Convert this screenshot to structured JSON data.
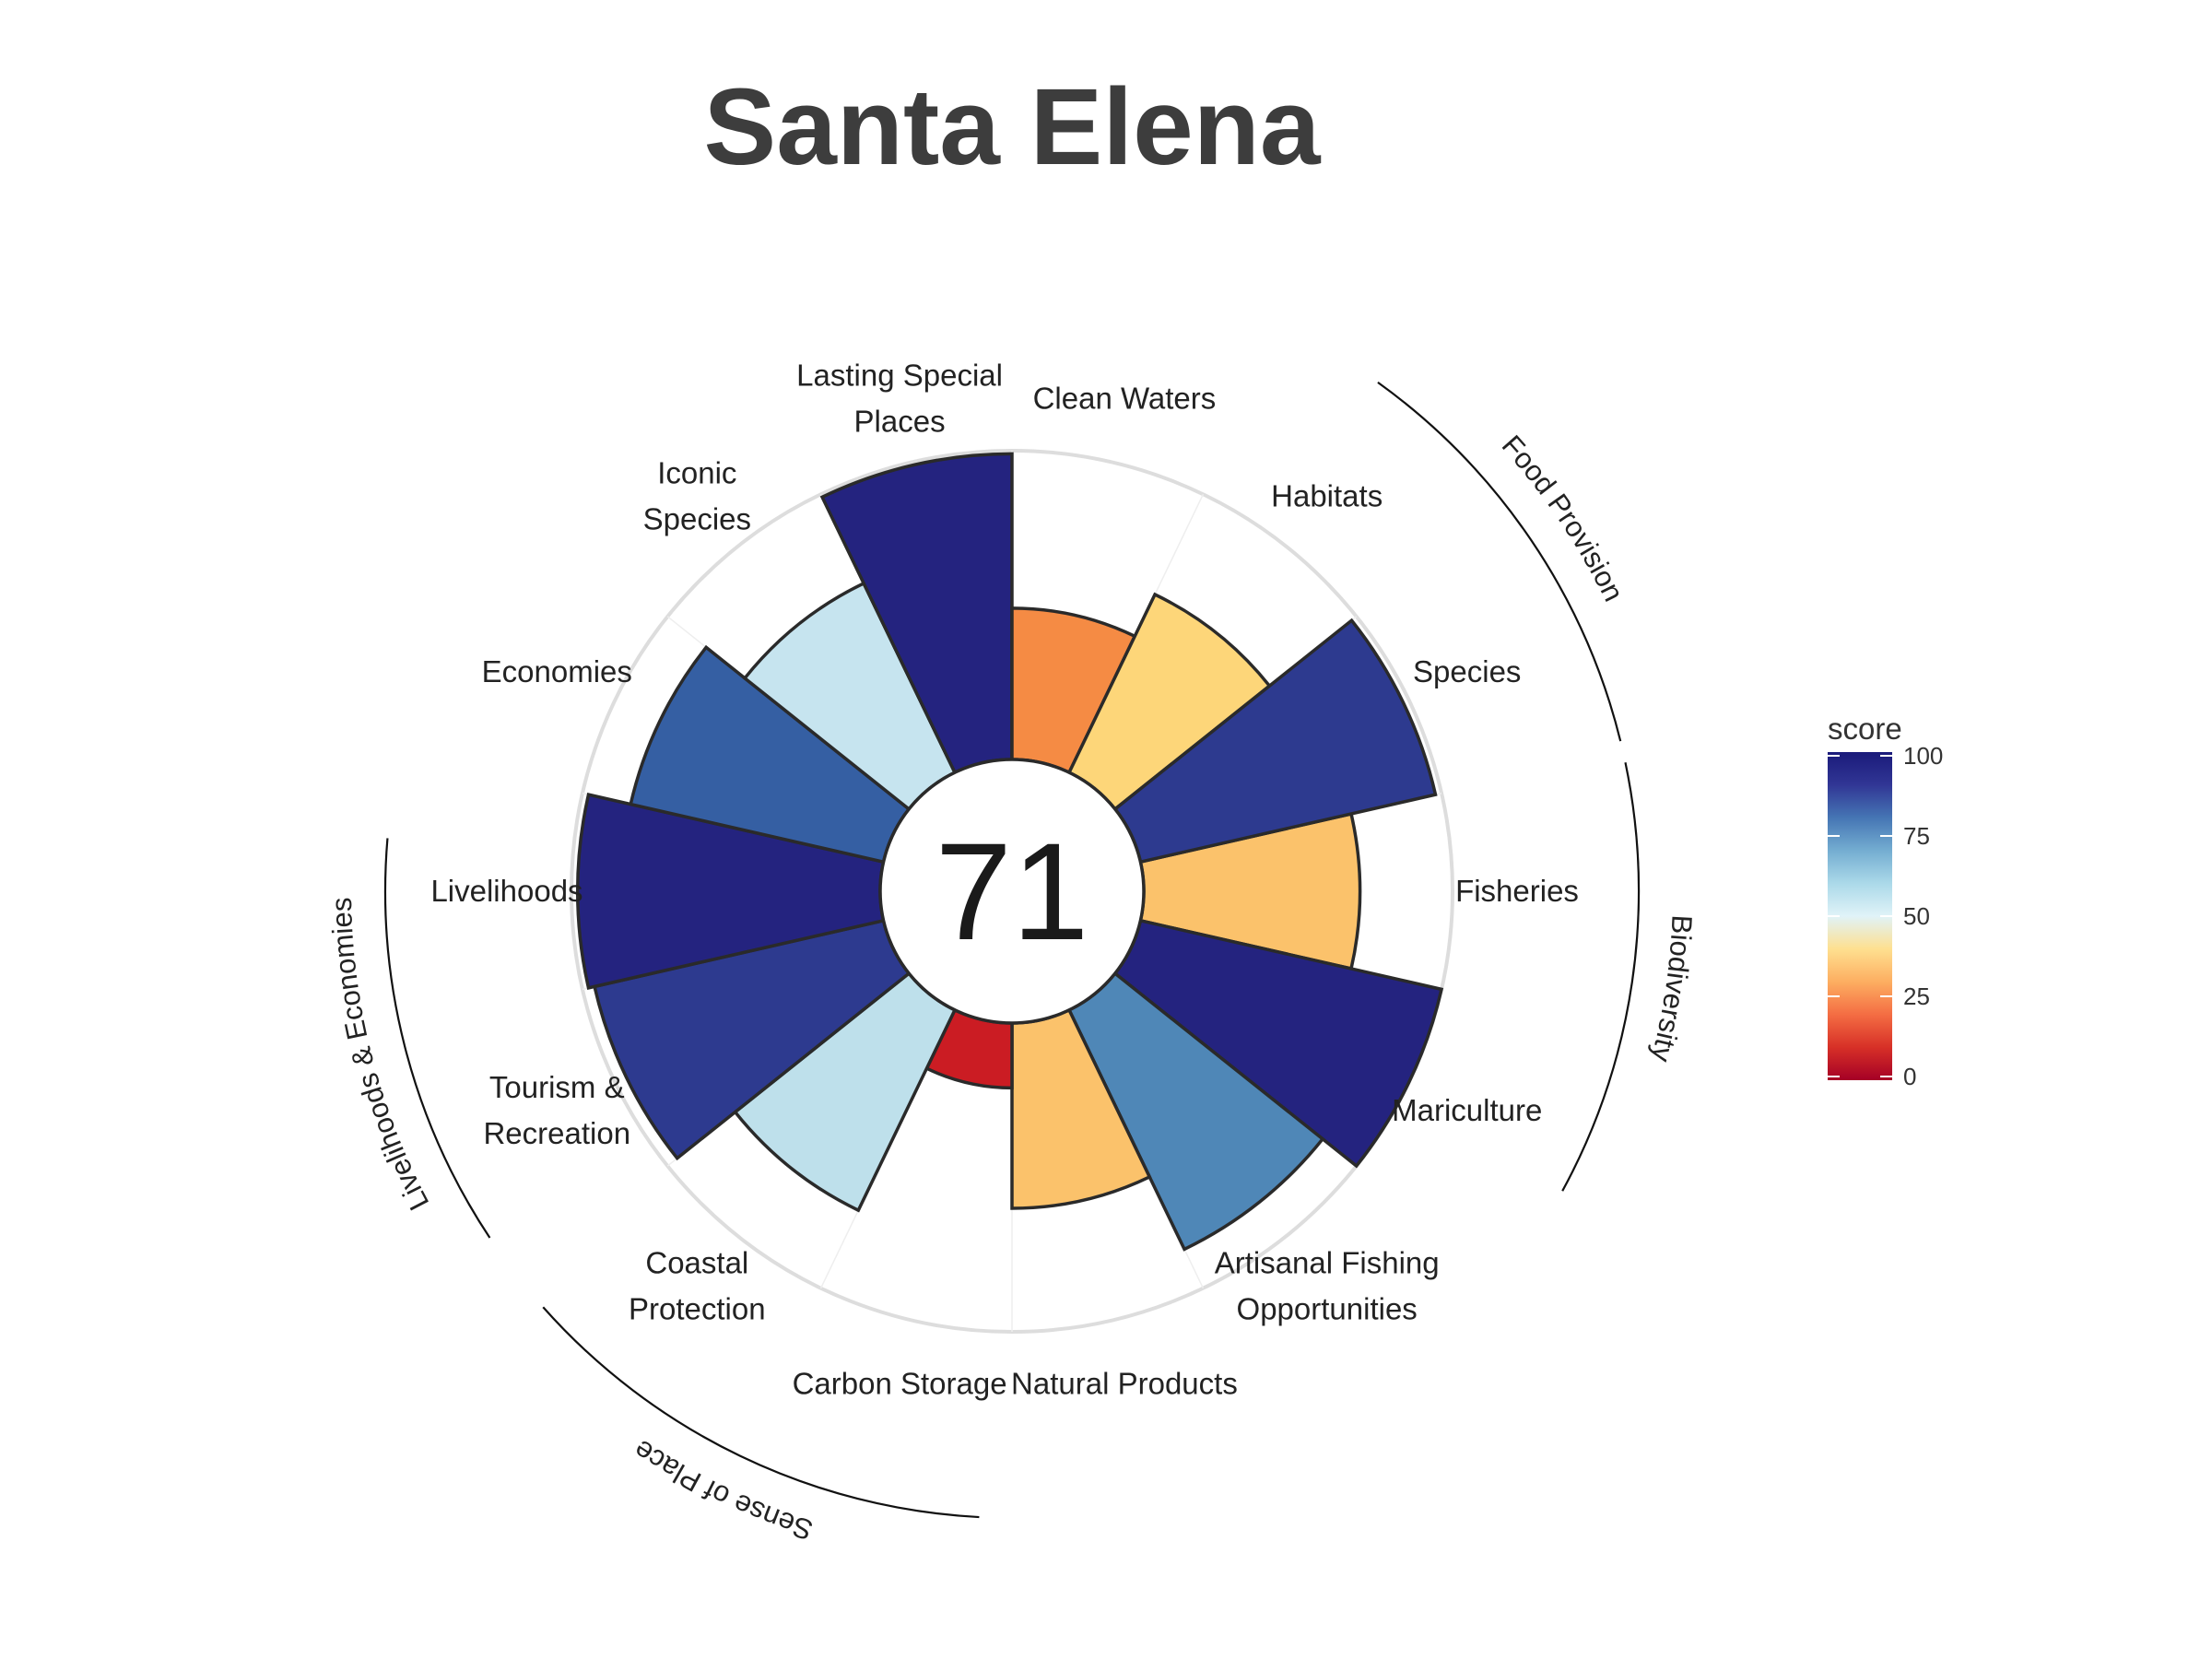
{
  "title": "Santa Elena",
  "chart_data": {
    "type": "polar-bar",
    "center_score": "71",
    "rlim": [
      0,
      100
    ],
    "goals": [
      {
        "label": [
          "Fisheries"
        ],
        "value": 70,
        "color": "#fbc26b"
      },
      {
        "label": [
          "Mariculture"
        ],
        "value": 100,
        "color": "#24237f"
      },
      {
        "label": [
          "Artisanal Fishing",
          "Opportunities"
        ],
        "value": 86,
        "color": "#4f87b7"
      },
      {
        "label": [
          "Natural Products"
        ],
        "value": 60,
        "color": "#fbc26b"
      },
      {
        "label": [
          "Carbon Storage"
        ],
        "value": 21,
        "color": "#cb1c23"
      },
      {
        "label": [
          "Coastal",
          "Protection"
        ],
        "value": 72,
        "color": "#bee0eb"
      },
      {
        "label": [
          "Tourism &",
          "Recreation"
        ],
        "value": 96,
        "color": "#2d3a8f"
      },
      {
        "label": [
          "Livelihoods"
        ],
        "value": 98,
        "color": "#24237f"
      },
      {
        "label": [
          "Economies"
        ],
        "value": 84,
        "color": "#355fa3"
      },
      {
        "label": [
          "Iconic",
          "Species"
        ],
        "value": 68,
        "color": "#c6e4ef"
      },
      {
        "label": [
          "Lasting Special",
          "Places"
        ],
        "value": 99,
        "color": "#24237f"
      },
      {
        "label": [
          "Clean Waters"
        ],
        "value": 49,
        "color": "#f58b44"
      },
      {
        "label": [
          "Habitats"
        ],
        "value": 64,
        "color": "#fdd679"
      },
      {
        "label": [
          "Species"
        ],
        "value": 98,
        "color": "#2d3a8f"
      }
    ],
    "groups": [
      {
        "label": "Food Provision"
      },
      {
        "label": "Biodiversity"
      },
      {
        "label": "Sense of Place"
      },
      {
        "label": "Livelihoods & Economies"
      }
    ],
    "legend": {
      "title": "score",
      "ticks": [
        0,
        25,
        50,
        75,
        100
      ],
      "colors": [
        "#a50026",
        "#d73027",
        "#f46d43",
        "#fdae61",
        "#fee090",
        "#e0f3f8",
        "#abd9e9",
        "#74add1",
        "#4575b4",
        "#313695",
        "#1a1a7a"
      ]
    }
  }
}
